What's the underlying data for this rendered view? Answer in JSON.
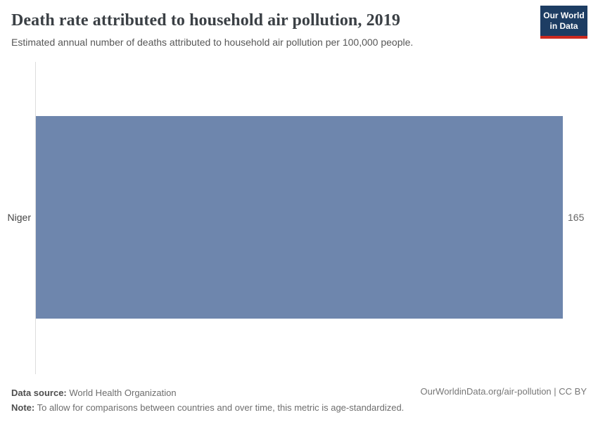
{
  "header": {
    "title": "Death rate attributed to household air pollution, 2019",
    "subtitle": "Estimated annual number of deaths attributed to household air pollution per 100,000 people.",
    "logo": {
      "line1": "Our World",
      "line2": "in Data",
      "background_color": "#1d3d63",
      "stripe_color": "#cc2a1f"
    }
  },
  "chart_data": {
    "type": "bar",
    "orientation": "horizontal",
    "title": "Death rate attributed to household air pollution, 2019",
    "subtitle": "Estimated annual number of deaths attributed to household air pollution per 100,000 people.",
    "categories": [
      "Niger"
    ],
    "values": [
      165
    ],
    "value_labels": [
      "165"
    ],
    "xlabel": "",
    "ylabel": "",
    "xlim": [
      0,
      165
    ],
    "grid": false,
    "legend": "none",
    "bar_color": "#6e86ad",
    "axis_line_color": "#dcdcdc"
  },
  "footer": {
    "datasource_label": "Data source:",
    "datasource_value": " World Health Organization",
    "note_label": "Note:",
    "note_value": " To allow for comparisons between countries and over time, this metric is age-standardized.",
    "credit": "OurWorldinData.org/air-pollution | CC BY"
  }
}
